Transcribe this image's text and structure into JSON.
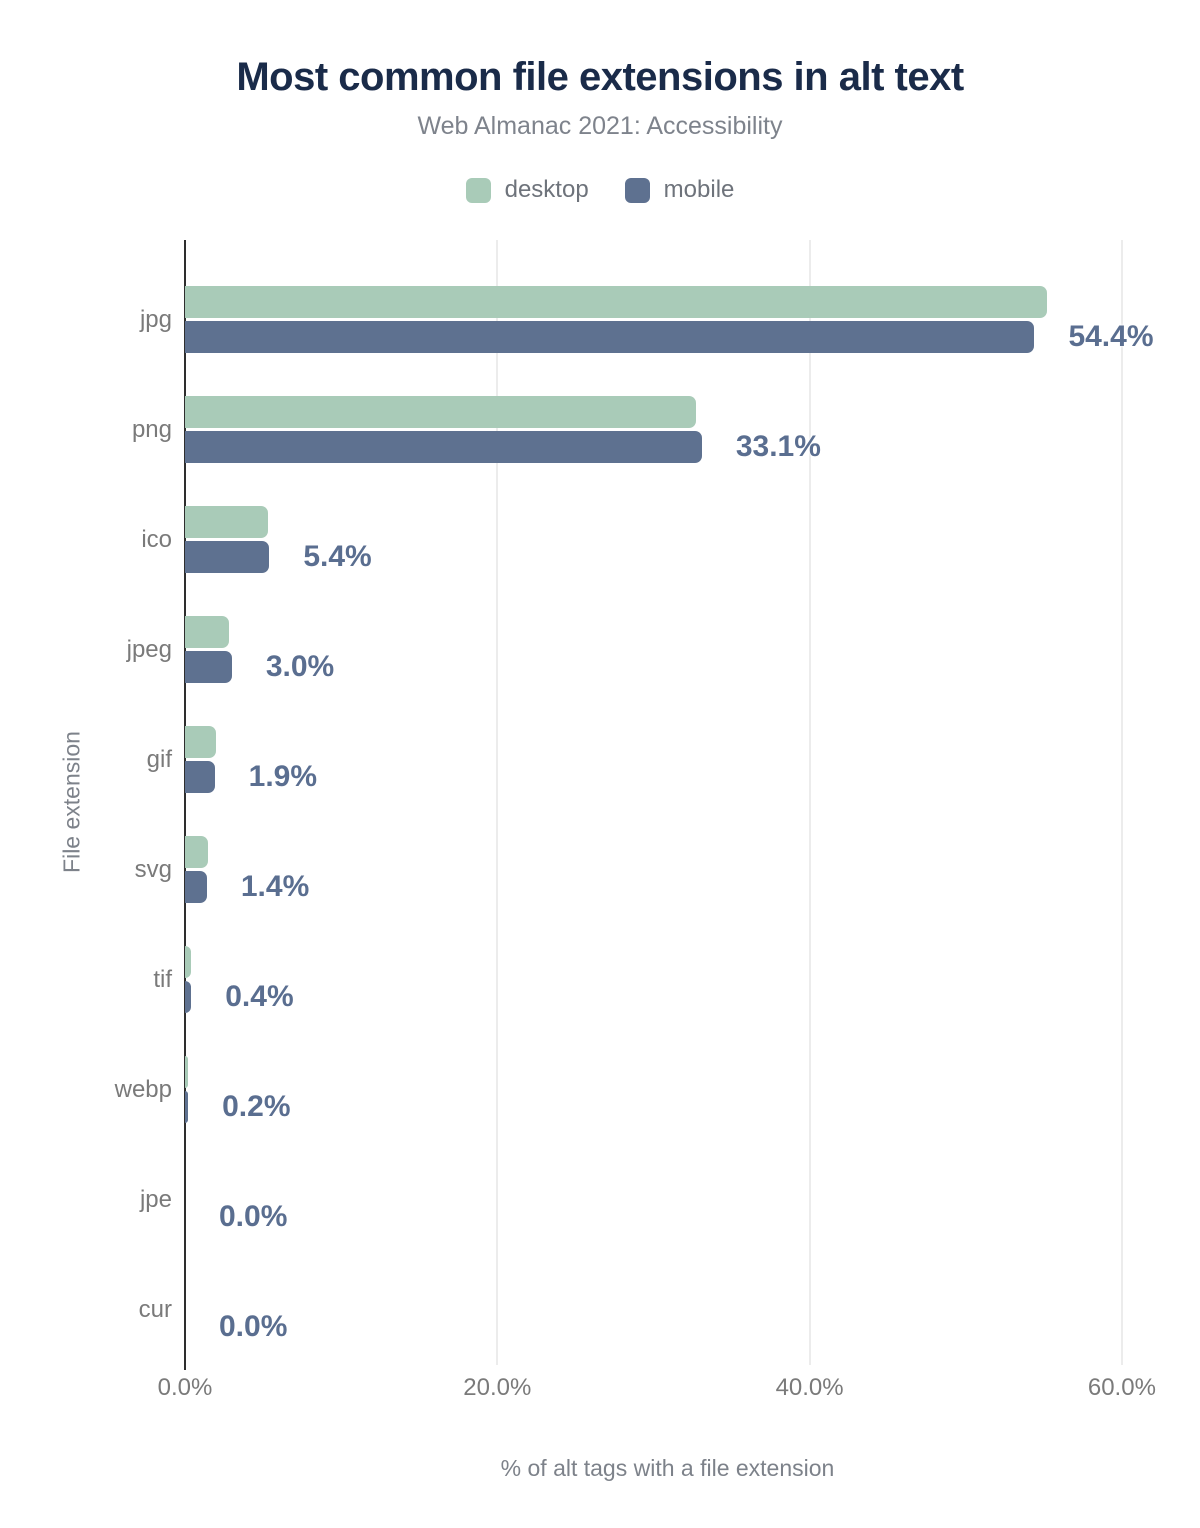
{
  "header": {
    "title": "Most common file extensions in alt text",
    "subtitle": "Web Almanac 2021: Accessibility"
  },
  "legend": [
    {
      "label": "desktop",
      "color": "#a9cbb8"
    },
    {
      "label": "mobile",
      "color": "#5e7190"
    }
  ],
  "colors": {
    "title": "#1a2b49",
    "subtitle_gray": "#7e838c",
    "axis_text_gray": "#7a7a7a",
    "value_label_blue": "#5a6e90",
    "desktop_bar": "#a9cbb8",
    "mobile_bar": "#5e7190",
    "axis_line": "#2e2e2e",
    "gridline": "#ececec",
    "background": "#ffffff"
  },
  "chart_data": {
    "type": "bar",
    "orientation": "horizontal",
    "title": "Most common file extensions in alt text",
    "subtitle": "Web Almanac 2021: Accessibility",
    "categories": [
      "jpg",
      "png",
      "ico",
      "jpeg",
      "gif",
      "svg",
      "tif",
      "webp",
      "jpe",
      "cur"
    ],
    "series": [
      {
        "name": "desktop",
        "color": "#a9cbb8",
        "values": [
          55.2,
          32.7,
          5.3,
          2.8,
          2.0,
          1.5,
          0.4,
          0.2,
          0.0,
          0.0
        ]
      },
      {
        "name": "mobile",
        "color": "#5e7190",
        "values": [
          54.4,
          33.1,
          5.4,
          3.0,
          1.9,
          1.4,
          0.4,
          0.2,
          0.0,
          0.0
        ]
      }
    ],
    "value_labels": [
      "54.4%",
      "33.1%",
      "5.4%",
      "3.0%",
      "1.9%",
      "1.4%",
      "0.4%",
      "0.2%",
      "0.0%",
      "0.0%"
    ],
    "xlabel": "% of alt tags with a file extension",
    "ylabel": "File extension",
    "x_ticks": [
      {
        "label": "0.0%",
        "value": 0
      },
      {
        "label": "20.0%",
        "value": 20
      },
      {
        "label": "40.0%",
        "value": 40
      },
      {
        "label": "60.0%",
        "value": 60
      }
    ],
    "xlim": [
      0,
      61.8
    ],
    "grid": "vertical",
    "legend_position": "top"
  }
}
